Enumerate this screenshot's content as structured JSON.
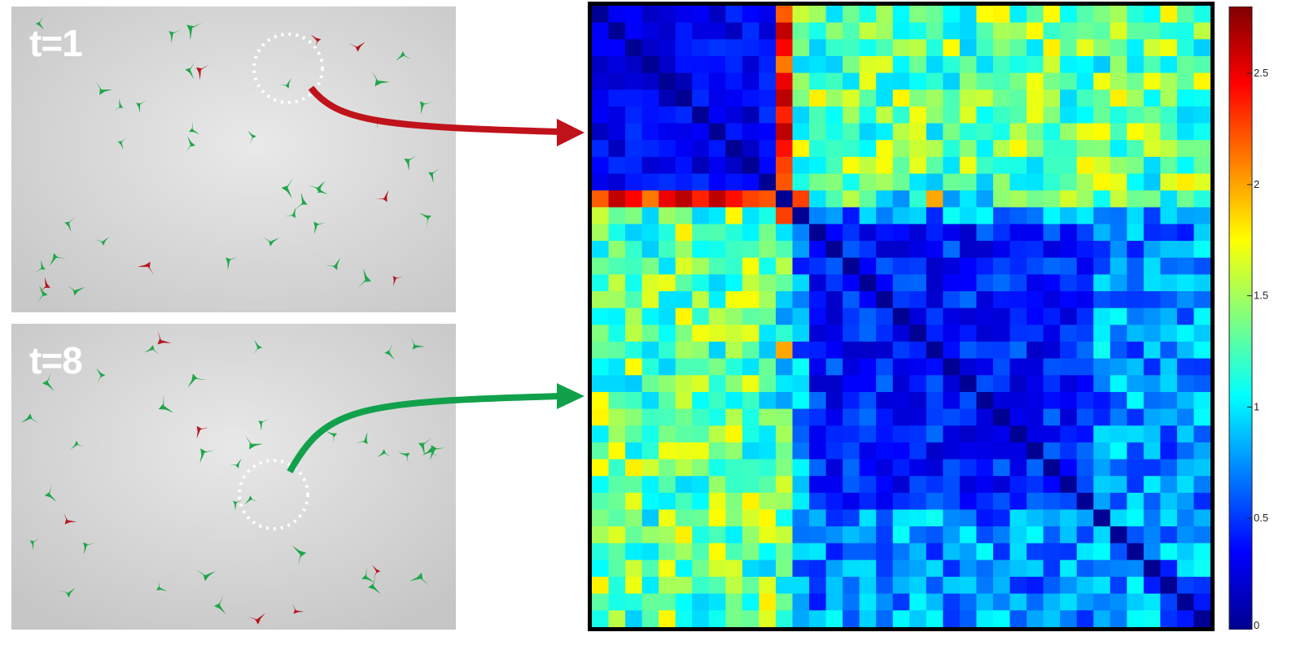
{
  "frames": [
    {
      "label": "t=1"
    },
    {
      "label": "t=8"
    }
  ],
  "colors": {
    "bird_green": "#1fa64a",
    "bird_red": "#b3151b",
    "arrow_red": "#c0121a",
    "arrow_green": "#12a14b",
    "circle": "#ffffff"
  },
  "chart_data": {
    "type": "heatmap",
    "colormap": "jet",
    "zlim": [
      0,
      2.8
    ],
    "size": 37,
    "special_index": 11,
    "block_split": 11,
    "colorbar_ticks": [
      "0",
      "0.5",
      "1",
      "1.5",
      "2",
      "2.5"
    ],
    "colorbar_tick_values": [
      0,
      0.5,
      1,
      1.5,
      2,
      2.5
    ]
  }
}
